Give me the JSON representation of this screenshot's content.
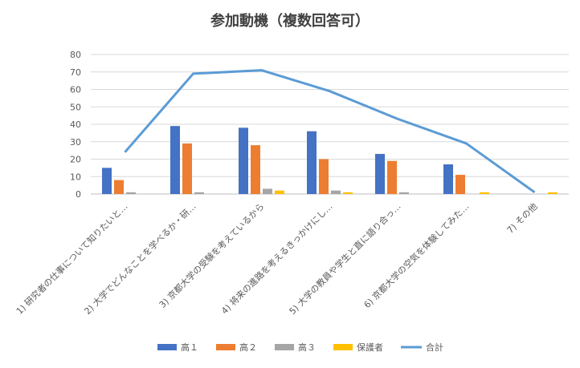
{
  "chart_data": {
    "type": "bar",
    "title": "参加動機（複数回答可）",
    "categories": [
      "1) 研究者の仕事について知りたいと…",
      "2) 大学でどんなことを学べるか・研…",
      "3) 京都大学の受験を考えているから",
      "4) 将来の進路を考えるきっかけにし…",
      "5) 大学の教員や学生と直に語り合っ…",
      "6) 京都大学の空気を体験してみた…",
      "7) その他"
    ],
    "series": [
      {
        "name": "高１",
        "type": "bar",
        "color": "#4472C4",
        "values": [
          15,
          39,
          38,
          36,
          23,
          17,
          0
        ]
      },
      {
        "name": "高２",
        "type": "bar",
        "color": "#ED7D31",
        "values": [
          8,
          29,
          28,
          20,
          19,
          11,
          0
        ]
      },
      {
        "name": "高３",
        "type": "bar",
        "color": "#A5A5A5",
        "values": [
          1,
          1,
          3,
          2,
          1,
          0,
          0
        ]
      },
      {
        "name": "保護者",
        "type": "bar",
        "color": "#FFC000",
        "values": [
          0,
          0,
          2,
          1,
          0,
          1,
          1
        ]
      },
      {
        "name": "合計",
        "type": "line",
        "color": "#5B9BD5",
        "values": [
          24,
          69,
          71,
          59,
          43,
          29,
          1
        ]
      }
    ],
    "ylim": [
      0,
      80
    ],
    "yticks": [
      0,
      10,
      20,
      30,
      40,
      50,
      60,
      70,
      80
    ],
    "grid": true,
    "legend_position": "bottom"
  }
}
